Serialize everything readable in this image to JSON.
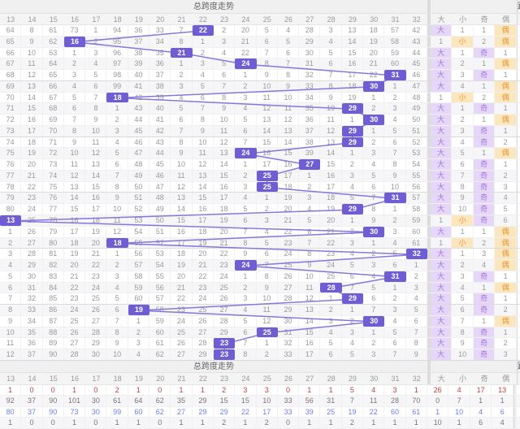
{
  "title": "总跨度走势",
  "footer_title": "总跨度走势",
  "next_section_partial_char": "跨",
  "columns": [
    "13",
    "14",
    "15",
    "16",
    "17",
    "18",
    "19",
    "20",
    "21",
    "22",
    "23",
    "24",
    "25",
    "26",
    "27",
    "28",
    "29",
    "30",
    "31",
    "32"
  ],
  "extra_columns": [
    "大",
    "小",
    "奇",
    "偶"
  ],
  "colors": {
    "hit_box": "#6f5ed3",
    "trend_line": "#8478dc",
    "big_odd_bg": "#e6d6f7",
    "big_odd_text": "#a276de",
    "small_even_bg": "#fbe6bd",
    "small_even_text": "#e99636",
    "stat_red": "#c2413e",
    "stat_blue": "#6f80e8"
  },
  "chart_data": {
    "type": "table",
    "title": "总跨度走势",
    "hit_sequence": [
      22,
      16,
      21,
      24,
      31,
      30,
      18,
      29,
      30,
      29,
      29,
      24,
      27,
      25,
      25,
      31,
      29,
      13,
      30,
      18,
      32,
      24,
      31,
      28,
      29,
      19,
      30,
      25,
      23,
      23
    ]
  },
  "rows": [
    {
      "cells": [
        "64",
        "8",
        "61",
        "73",
        "1",
        "94",
        "36",
        "33",
        "7",
        "22",
        "2",
        "20",
        "5",
        "4",
        "28",
        "3",
        "13",
        "18",
        "57",
        "42"
      ],
      "hit": 22,
      "extra": [
        "大",
        "1",
        "1",
        "偶"
      ]
    },
    {
      "cells": [
        "65",
        "9",
        "62",
        "16",
        "2",
        "95",
        "37",
        "34",
        "8",
        "1",
        "3",
        "21",
        "6",
        "5",
        "29",
        "4",
        "14",
        "19",
        "58",
        "43"
      ],
      "hit": 16,
      "extra": [
        "1",
        "小",
        "2",
        "偶"
      ]
    },
    {
      "cells": [
        "66",
        "10",
        "63",
        "1",
        "3",
        "96",
        "38",
        "35",
        "21",
        "2",
        "4",
        "22",
        "7",
        "6",
        "30",
        "5",
        "15",
        "20",
        "59",
        "44"
      ],
      "hit": 21,
      "extra": [
        "大",
        "1",
        "奇",
        "1"
      ]
    },
    {
      "cells": [
        "67",
        "11",
        "64",
        "2",
        "4",
        "97",
        "39",
        "36",
        "1",
        "3",
        "5",
        "24",
        "8",
        "7",
        "31",
        "6",
        "16",
        "21",
        "60",
        "45"
      ],
      "hit": 24,
      "extra": [
        "大",
        "2",
        "1",
        "偶"
      ]
    },
    {
      "cells": [
        "68",
        "12",
        "65",
        "3",
        "5",
        "98",
        "40",
        "37",
        "2",
        "4",
        "6",
        "1",
        "9",
        "8",
        "32",
        "7",
        "17",
        "22",
        "31",
        "46"
      ],
      "hit": 31,
      "extra": [
        "大",
        "3",
        "奇",
        "1"
      ]
    },
    {
      "cells": [
        "69",
        "13",
        "66",
        "4",
        "6",
        "99",
        "41",
        "38",
        "3",
        "5",
        "7",
        "2",
        "10",
        "9",
        "33",
        "8",
        "18",
        "30",
        "1",
        "47"
      ],
      "hit": 30,
      "extra": [
        "大",
        "4",
        "1",
        "偶"
      ]
    },
    {
      "cells": [
        "70",
        "14",
        "67",
        "5",
        "7",
        "18",
        "42",
        "39",
        "4",
        "6",
        "8",
        "3",
        "11",
        "10",
        "34",
        "9",
        "19",
        "1",
        "2",
        "48"
      ],
      "hit": 18,
      "extra": [
        "1",
        "小",
        "2",
        "偶"
      ]
    },
    {
      "cells": [
        "71",
        "15",
        "68",
        "6",
        "8",
        "1",
        "43",
        "40",
        "5",
        "7",
        "9",
        "4",
        "12",
        "11",
        "35",
        "10",
        "29",
        "2",
        "3",
        "49"
      ],
      "hit": 29,
      "extra": [
        "大",
        "1",
        "奇",
        "1"
      ]
    },
    {
      "cells": [
        "72",
        "16",
        "69",
        "7",
        "9",
        "2",
        "44",
        "41",
        "6",
        "8",
        "10",
        "5",
        "13",
        "12",
        "36",
        "11",
        "1",
        "30",
        "4",
        "50"
      ],
      "hit": 30,
      "extra": [
        "大",
        "2",
        "1",
        "偶"
      ]
    },
    {
      "cells": [
        "73",
        "17",
        "70",
        "8",
        "10",
        "3",
        "45",
        "42",
        "7",
        "9",
        "11",
        "6",
        "14",
        "13",
        "37",
        "12",
        "29",
        "1",
        "5",
        "51"
      ],
      "hit": 29,
      "extra": [
        "大",
        "3",
        "奇",
        "1"
      ]
    },
    {
      "cells": [
        "74",
        "18",
        "71",
        "9",
        "11",
        "4",
        "46",
        "43",
        "8",
        "10",
        "12",
        "7",
        "15",
        "14",
        "38",
        "13",
        "29",
        "2",
        "6",
        "52"
      ],
      "hit": 29,
      "extra": [
        "大",
        "4",
        "奇",
        "2"
      ]
    },
    {
      "cells": [
        "75",
        "19",
        "72",
        "10",
        "12",
        "5",
        "47",
        "44",
        "9",
        "11",
        "13",
        "24",
        "16",
        "15",
        "39",
        "14",
        "1",
        "3",
        "7",
        "53"
      ],
      "hit": 24,
      "extra": [
        "大",
        "5",
        "1",
        "偶"
      ]
    },
    {
      "cells": [
        "76",
        "20",
        "73",
        "11",
        "13",
        "6",
        "48",
        "45",
        "10",
        "12",
        "14",
        "1",
        "17",
        "16",
        "27",
        "15",
        "2",
        "4",
        "8",
        "54"
      ],
      "hit": 27,
      "extra": [
        "大",
        "6",
        "奇",
        "1"
      ]
    },
    {
      "cells": [
        "77",
        "21",
        "74",
        "12",
        "14",
        "7",
        "49",
        "46",
        "11",
        "13",
        "15",
        "2",
        "25",
        "17",
        "1",
        "16",
        "3",
        "5",
        "9",
        "55"
      ],
      "hit": 25,
      "extra": [
        "大",
        "7",
        "奇",
        "2"
      ]
    },
    {
      "cells": [
        "78",
        "22",
        "75",
        "13",
        "15",
        "8",
        "50",
        "47",
        "12",
        "14",
        "16",
        "3",
        "25",
        "18",
        "2",
        "17",
        "4",
        "6",
        "10",
        "56"
      ],
      "hit": 25,
      "extra": [
        "大",
        "8",
        "奇",
        "3"
      ]
    },
    {
      "cells": [
        "79",
        "23",
        "76",
        "14",
        "16",
        "9",
        "51",
        "48",
        "13",
        "15",
        "17",
        "4",
        "1",
        "19",
        "3",
        "18",
        "5",
        "7",
        "31",
        "57"
      ],
      "hit": 31,
      "extra": [
        "大",
        "9",
        "奇",
        "4"
      ]
    },
    {
      "cells": [
        "80",
        "24",
        "77",
        "15",
        "17",
        "10",
        "52",
        "49",
        "14",
        "16",
        "18",
        "5",
        "2",
        "20",
        "4",
        "19",
        "29",
        "8",
        "1",
        "58"
      ],
      "hit": 29,
      "extra": [
        "大",
        "10",
        "奇",
        "5"
      ]
    },
    {
      "cells": [
        "13",
        "25",
        "78",
        "16",
        "18",
        "11",
        "53",
        "50",
        "15",
        "17",
        "19",
        "6",
        "3",
        "21",
        "5",
        "20",
        "1",
        "9",
        "2",
        "59"
      ],
      "hit": 13,
      "extra": [
        "1",
        "小",
        "奇",
        "6"
      ]
    },
    {
      "cells": [
        "1",
        "26",
        "79",
        "17",
        "19",
        "12",
        "54",
        "51",
        "16",
        "18",
        "20",
        "7",
        "4",
        "22",
        "6",
        "21",
        "2",
        "30",
        "3",
        "60"
      ],
      "hit": 30,
      "extra": [
        "大",
        "1",
        "1",
        "偶"
      ]
    },
    {
      "cells": [
        "2",
        "27",
        "80",
        "18",
        "20",
        "18",
        "55",
        "52",
        "17",
        "19",
        "21",
        "8",
        "5",
        "23",
        "7",
        "22",
        "3",
        "1",
        "4",
        "61"
      ],
      "hit": 18,
      "extra": [
        "1",
        "小",
        "2",
        "偶"
      ]
    },
    {
      "cells": [
        "3",
        "28",
        "81",
        "19",
        "21",
        "1",
        "56",
        "53",
        "18",
        "20",
        "22",
        "9",
        "6",
        "24",
        "8",
        "23",
        "4",
        "2",
        "5",
        "32"
      ],
      "hit": 32,
      "extra": [
        "大",
        "1",
        "3",
        "偶"
      ]
    },
    {
      "cells": [
        "4",
        "29",
        "82",
        "20",
        "22",
        "2",
        "57",
        "54",
        "19",
        "21",
        "23",
        "24",
        "7",
        "25",
        "9",
        "24",
        "5",
        "3",
        "6",
        "1"
      ],
      "hit": 24,
      "extra": [
        "大",
        "2",
        "4",
        "偶"
      ]
    },
    {
      "cells": [
        "5",
        "30",
        "83",
        "21",
        "23",
        "3",
        "58",
        "55",
        "20",
        "22",
        "24",
        "1",
        "8",
        "26",
        "10",
        "25",
        "6",
        "4",
        "31",
        "2"
      ],
      "hit": 31,
      "extra": [
        "大",
        "3",
        "奇",
        "1"
      ]
    },
    {
      "cells": [
        "6",
        "31",
        "84",
        "22",
        "24",
        "4",
        "59",
        "56",
        "21",
        "23",
        "25",
        "2",
        "9",
        "27",
        "11",
        "28",
        "7",
        "5",
        "1",
        "3"
      ],
      "hit": 28,
      "extra": [
        "大",
        "4",
        "1",
        "偶"
      ]
    },
    {
      "cells": [
        "7",
        "32",
        "85",
        "23",
        "25",
        "5",
        "60",
        "57",
        "22",
        "24",
        "26",
        "3",
        "10",
        "28",
        "12",
        "1",
        "29",
        "6",
        "2",
        "4"
      ],
      "hit": 29,
      "extra": [
        "大",
        "5",
        "奇",
        "1"
      ]
    },
    {
      "cells": [
        "8",
        "33",
        "86",
        "24",
        "26",
        "6",
        "19",
        "58",
        "23",
        "25",
        "27",
        "4",
        "11",
        "29",
        "13",
        "2",
        "1",
        "7",
        "3",
        "5"
      ],
      "hit": 19,
      "extra": [
        "大",
        "6",
        "奇",
        "2"
      ]
    },
    {
      "cells": [
        "9",
        "34",
        "87",
        "25",
        "27",
        "7",
        "1",
        "59",
        "24",
        "26",
        "28",
        "5",
        "12",
        "30",
        "14",
        "3",
        "2",
        "30",
        "4",
        "6"
      ],
      "hit": 30,
      "extra": [
        "大",
        "7",
        "1",
        "偶"
      ]
    },
    {
      "cells": [
        "10",
        "35",
        "88",
        "26",
        "28",
        "8",
        "2",
        "60",
        "25",
        "27",
        "29",
        "6",
        "25",
        "31",
        "15",
        "4",
        "3",
        "1",
        "5",
        "7"
      ],
      "hit": 25,
      "extra": [
        "大",
        "8",
        "奇",
        "1"
      ]
    },
    {
      "cells": [
        "11",
        "36",
        "89",
        "27",
        "29",
        "9",
        "3",
        "61",
        "26",
        "28",
        "23",
        "7",
        "1",
        "32",
        "16",
        "5",
        "4",
        "2",
        "6",
        "8"
      ],
      "hit": 23,
      "extra": [
        "大",
        "9",
        "奇",
        "2"
      ]
    },
    {
      "cells": [
        "12",
        "37",
        "90",
        "28",
        "30",
        "10",
        "4",
        "62",
        "27",
        "29",
        "23",
        "8",
        "2",
        "33",
        "17",
        "6",
        "5",
        "3",
        "7",
        "9"
      ],
      "hit": 23,
      "extra": [
        "大",
        "10",
        "奇",
        "3"
      ]
    }
  ],
  "footer_stats": [
    {
      "style": "red",
      "values": [
        "1",
        "0",
        "0",
        "1",
        "0",
        "2",
        "1",
        "0",
        "1",
        "1",
        "2",
        "3",
        "3",
        "0",
        "1",
        "1",
        "5",
        "4",
        "3",
        "1",
        "26",
        "4",
        "17",
        "13"
      ]
    },
    {
      "style": "dark",
      "values": [
        "92",
        "37",
        "90",
        "101",
        "30",
        "61",
        "64",
        "62",
        "35",
        "29",
        "15",
        "15",
        "10",
        "33",
        "56",
        "31",
        "7",
        "11",
        "28",
        "70",
        "0",
        "7",
        "1",
        "1"
      ]
    },
    {
      "style": "blue",
      "values": [
        "80",
        "37",
        "90",
        "73",
        "30",
        "99",
        "60",
        "62",
        "27",
        "29",
        "29",
        "22",
        "17",
        "33",
        "39",
        "25",
        "19",
        "22",
        "60",
        "61",
        "1",
        "10",
        "4",
        "6"
      ]
    },
    {
      "style": "dark",
      "values": [
        "1",
        "0",
        "0",
        "1",
        "0",
        "1",
        "1",
        "0",
        "1",
        "1",
        "2",
        "1",
        "2",
        "0",
        "1",
        "1",
        "2",
        "1",
        "1",
        "1",
        "10",
        "1",
        "6",
        "4"
      ]
    }
  ]
}
